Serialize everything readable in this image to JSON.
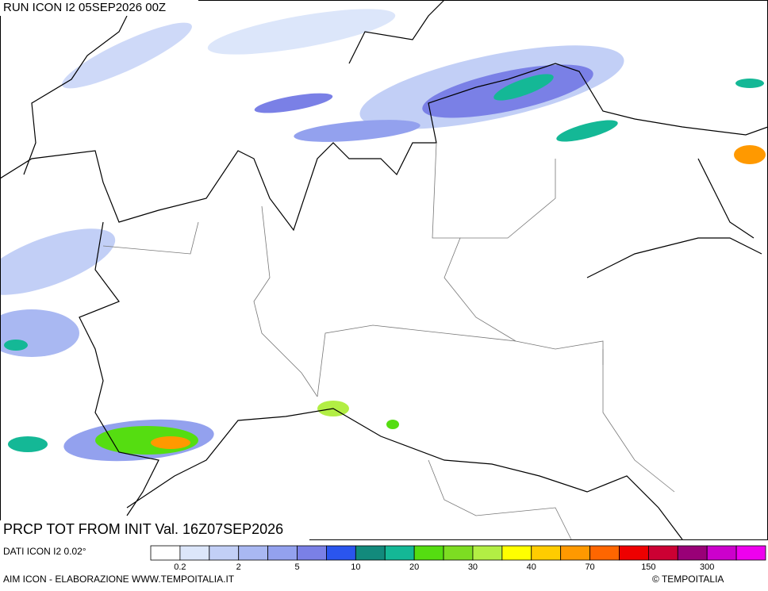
{
  "header": {
    "run": "RUN ICON I2 05SEP2026 00Z"
  },
  "map": {
    "product": "PRCP TOT FROM INIT Val. 16Z07SEP2026"
  },
  "legend": {
    "source": "DATI ICON I2 0.02°",
    "colors": [
      "#ffffff",
      "#dce6fa",
      "#c2cff6",
      "#a9b8f2",
      "#93a1ee",
      "#7a80e6",
      "#2a55ee",
      "#128a7c",
      "#14b896",
      "#55dd11",
      "#7ddd22",
      "#b2ee44",
      "#ffff00",
      "#ffcc00",
      "#ff9900",
      "#ff6600",
      "#ee0000",
      "#cc0033",
      "#990077",
      "#cc00cc",
      "#ee00ee"
    ],
    "labels": [
      "0.2",
      "2",
      "5",
      "10",
      "20",
      "30",
      "40",
      "70",
      "150",
      "300"
    ]
  },
  "footer": {
    "credit": "AIM ICON - ELABORAZIONE WWW.TEMPOITALIA.IT",
    "copyright": "© TEMPOITALIA"
  }
}
